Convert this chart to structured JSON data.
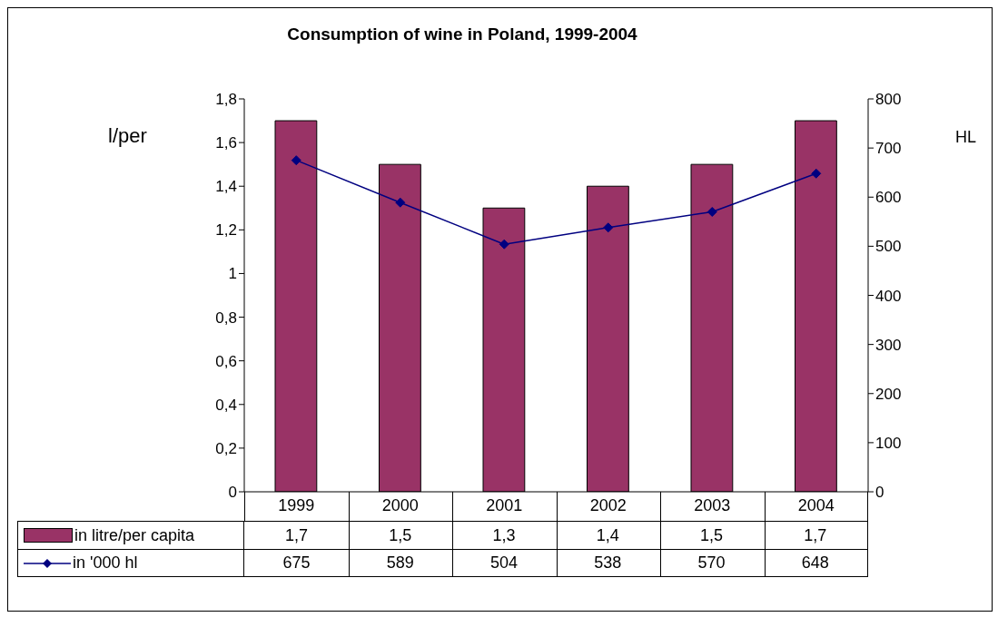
{
  "chart_data": {
    "type": "bar",
    "title": "Consumption of wine in Poland, 1999-2004",
    "ylabel": "l/per",
    "y2label": "HL",
    "categories": [
      "1999",
      "2000",
      "2001",
      "2002",
      "2003",
      "2004"
    ],
    "series": [
      {
        "name": "in litre/per capita",
        "color": "#993366",
        "values": [
          1.7,
          1.5,
          1.3,
          1.4,
          1.5,
          1.7
        ],
        "value_labels": [
          "1,7",
          "1,5",
          "1,3",
          "1,4",
          "1,5",
          "1,7"
        ]
      },
      {
        "name": "in '000 hl",
        "type": "line",
        "axis": "y2",
        "color": "#000080",
        "values": [
          675,
          589,
          504,
          538,
          570,
          648
        ],
        "value_labels": [
          "675",
          "589",
          "504",
          "538",
          "570",
          "648"
        ]
      }
    ],
    "ylim": [
      0,
      1.8
    ],
    "yticks": [
      0,
      {
        "value": 0.2,
        "label": "0,2"
      },
      {
        "value": 0.4,
        "label": "0,4"
      },
      {
        "value": 0.6,
        "label": "0,6"
      },
      {
        "value": 0.8,
        "label": "0,8"
      },
      1,
      {
        "value": 1.2,
        "label": "1,2"
      },
      {
        "value": 1.4,
        "label": "1,4"
      },
      {
        "value": 1.6,
        "label": "1,6"
      },
      {
        "value": 1.8,
        "label": "1,8"
      }
    ],
    "y2lim": [
      0,
      800
    ],
    "y2ticks": [
      0,
      100,
      200,
      300,
      400,
      500,
      600,
      700,
      800
    ],
    "grid": false,
    "legend": "bottom left",
    "marker": "diamond",
    "line_style": "solid"
  }
}
